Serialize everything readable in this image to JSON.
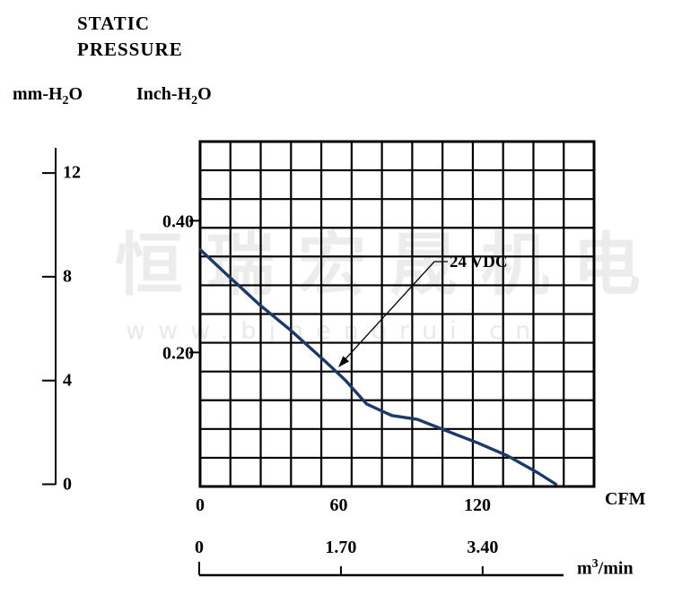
{
  "title": {
    "line1": "STATIC",
    "line2": "PRESSURE"
  },
  "watermark": {
    "cjk": "恒瑞宏晟机电",
    "url": "www.bjhengrui.cn"
  },
  "axes": {
    "pressure_mm": {
      "prefix": "mm-H",
      "sub": "2",
      "suffix": "O",
      "ticks": [
        12,
        8,
        4,
        0
      ]
    },
    "pressure_inch": {
      "prefix": "Inch-H",
      "sub": "2",
      "suffix": "O",
      "tick_labels": [
        "0.40",
        "0.20"
      ],
      "tick_values": [
        0.4,
        0.2
      ]
    },
    "airflow_cfm": {
      "unit": "CFM",
      "ticks": [
        0,
        60,
        120
      ]
    },
    "airflow_m3": {
      "prefix": "m",
      "sup": "3",
      "suffix": "/min",
      "tick_labels": [
        "0",
        "1.70",
        "3.40"
      ],
      "tick_values": [
        0,
        1.7,
        3.4
      ]
    }
  },
  "chart_data": {
    "type": "line",
    "title": "STATIC PRESSURE",
    "xlabel": "CFM",
    "x2label": "m3/min",
    "ylabel": "mm-H2O",
    "y2label": "Inch-H2O",
    "xlim": [
      0,
      170
    ],
    "x2lim": [
      0,
      4.8
    ],
    "ylim_mm": [
      0,
      13.3
    ],
    "ylim_inch": [
      0,
      0.52
    ],
    "grid": {
      "cols": 13,
      "rows": 12,
      "on": true
    },
    "legend_position": "inline-callout",
    "annotation": {
      "label": "24 VDC"
    },
    "series": [
      {
        "name": "24 VDC",
        "color": "#1b3a6b",
        "x_cfm": [
          0,
          12,
          26,
          39,
          54,
          63,
          72,
          78,
          83,
          94,
          107,
          120,
          133,
          146,
          154
        ],
        "y_mm": [
          9.05,
          8.05,
          6.9,
          5.95,
          4.75,
          4.0,
          3.1,
          2.85,
          2.65,
          2.5,
          2.05,
          1.6,
          1.1,
          0.45,
          0
        ]
      }
    ]
  }
}
